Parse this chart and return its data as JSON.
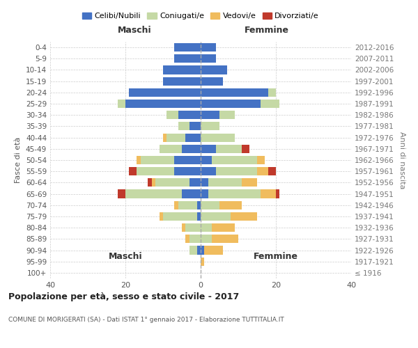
{
  "age_groups": [
    "100+",
    "95-99",
    "90-94",
    "85-89",
    "80-84",
    "75-79",
    "70-74",
    "65-69",
    "60-64",
    "55-59",
    "50-54",
    "45-49",
    "40-44",
    "35-39",
    "30-34",
    "25-29",
    "20-24",
    "15-19",
    "10-14",
    "5-9",
    "0-4"
  ],
  "birth_years": [
    "≤ 1916",
    "1917-1921",
    "1922-1926",
    "1927-1931",
    "1932-1936",
    "1937-1941",
    "1942-1946",
    "1947-1951",
    "1952-1956",
    "1957-1961",
    "1962-1966",
    "1967-1971",
    "1972-1976",
    "1977-1981",
    "1982-1986",
    "1987-1991",
    "1992-1996",
    "1997-2001",
    "2002-2006",
    "2007-2011",
    "2012-2016"
  ],
  "maschi": {
    "celibi": [
      0,
      0,
      1,
      0,
      0,
      1,
      1,
      5,
      3,
      7,
      7,
      5,
      4,
      3,
      6,
      20,
      19,
      10,
      10,
      7,
      7
    ],
    "coniugati": [
      0,
      0,
      2,
      3,
      4,
      9,
      5,
      15,
      9,
      10,
      9,
      6,
      5,
      3,
      3,
      2,
      0,
      0,
      0,
      0,
      0
    ],
    "vedovi": [
      0,
      0,
      0,
      1,
      1,
      1,
      1,
      0,
      1,
      0,
      1,
      0,
      1,
      0,
      0,
      0,
      0,
      0,
      0,
      0,
      0
    ],
    "divorziati": [
      0,
      0,
      0,
      0,
      0,
      0,
      0,
      2,
      1,
      2,
      0,
      0,
      0,
      0,
      0,
      0,
      0,
      0,
      0,
      0,
      0
    ]
  },
  "femmine": {
    "celibi": [
      0,
      0,
      1,
      0,
      0,
      0,
      0,
      2,
      2,
      4,
      3,
      4,
      0,
      0,
      5,
      16,
      18,
      6,
      7,
      4,
      4
    ],
    "coniugati": [
      0,
      0,
      0,
      3,
      3,
      8,
      5,
      14,
      9,
      11,
      12,
      7,
      9,
      5,
      4,
      5,
      2,
      0,
      0,
      0,
      0
    ],
    "vedovi": [
      0,
      1,
      5,
      7,
      6,
      7,
      6,
      4,
      4,
      3,
      2,
      0,
      0,
      0,
      0,
      0,
      0,
      0,
      0,
      0,
      0
    ],
    "divorziati": [
      0,
      0,
      0,
      0,
      0,
      0,
      0,
      1,
      0,
      2,
      0,
      2,
      0,
      0,
      0,
      0,
      0,
      0,
      0,
      0,
      0
    ]
  },
  "colors": {
    "celibi": "#4472c4",
    "coniugati": "#c5d9a5",
    "vedovi": "#f0bc5e",
    "divorziati": "#c0392b"
  },
  "legend_labels": [
    "Celibi/Nubili",
    "Coniugati/e",
    "Vedovi/e",
    "Divorziati/e"
  ],
  "title": "Popolazione per età, sesso e stato civile - 2017",
  "subtitle": "COMUNE DI MORIGERATI (SA) - Dati ISTAT 1° gennaio 2017 - Elaborazione TUTTITALIA.IT",
  "ylabel": "Fasce di età",
  "ylabel_right": "Anni di nascita",
  "xlabel_left": "Maschi",
  "xlabel_right": "Femmine",
  "xlim": 40,
  "background_color": "#ffffff",
  "grid_color": "#cccccc"
}
